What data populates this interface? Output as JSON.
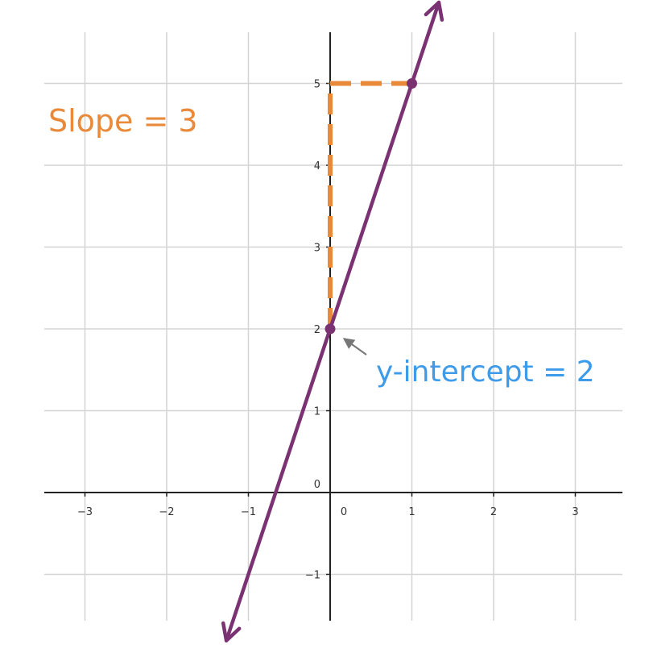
{
  "chart_data": {
    "type": "line",
    "title": "",
    "xlabel": "",
    "ylabel": "",
    "xlim": [
      -3.5,
      3.6
    ],
    "ylim": [
      -1.6,
      5.7
    ],
    "x_ticks": [
      -3,
      -2,
      -1,
      0,
      1,
      2,
      3
    ],
    "y_ticks": [
      -1,
      0,
      1,
      2,
      3,
      4,
      5
    ],
    "x_tick_labels": [
      "−3",
      "−2",
      "−1",
      "0",
      "1",
      "2",
      "3"
    ],
    "y_tick_labels": [
      "−1",
      "0",
      "1",
      "2",
      "3",
      "4",
      "5"
    ],
    "grid": true,
    "line": {
      "slope": 3,
      "intercept": 2,
      "x_start": -1.27,
      "x_end": 1.33,
      "arrows": "both"
    },
    "points": [
      {
        "x": 0,
        "y": 2
      },
      {
        "x": 1,
        "y": 5
      }
    ],
    "slope_triangle": {
      "corner": {
        "x": 0,
        "y": 5
      },
      "from": {
        "x": 0,
        "y": 2
      },
      "to": {
        "x": 1,
        "y": 5
      }
    },
    "annotations": {
      "slope": "Slope = 3",
      "y_intercept": "y-intercept = 2"
    },
    "colors": {
      "line": "#7b3273",
      "slope": "#e98a3b",
      "y_intercept": "#3d9be9",
      "grid": "#d4d4d4",
      "axis": "#222222",
      "pointer": "#777777"
    }
  }
}
